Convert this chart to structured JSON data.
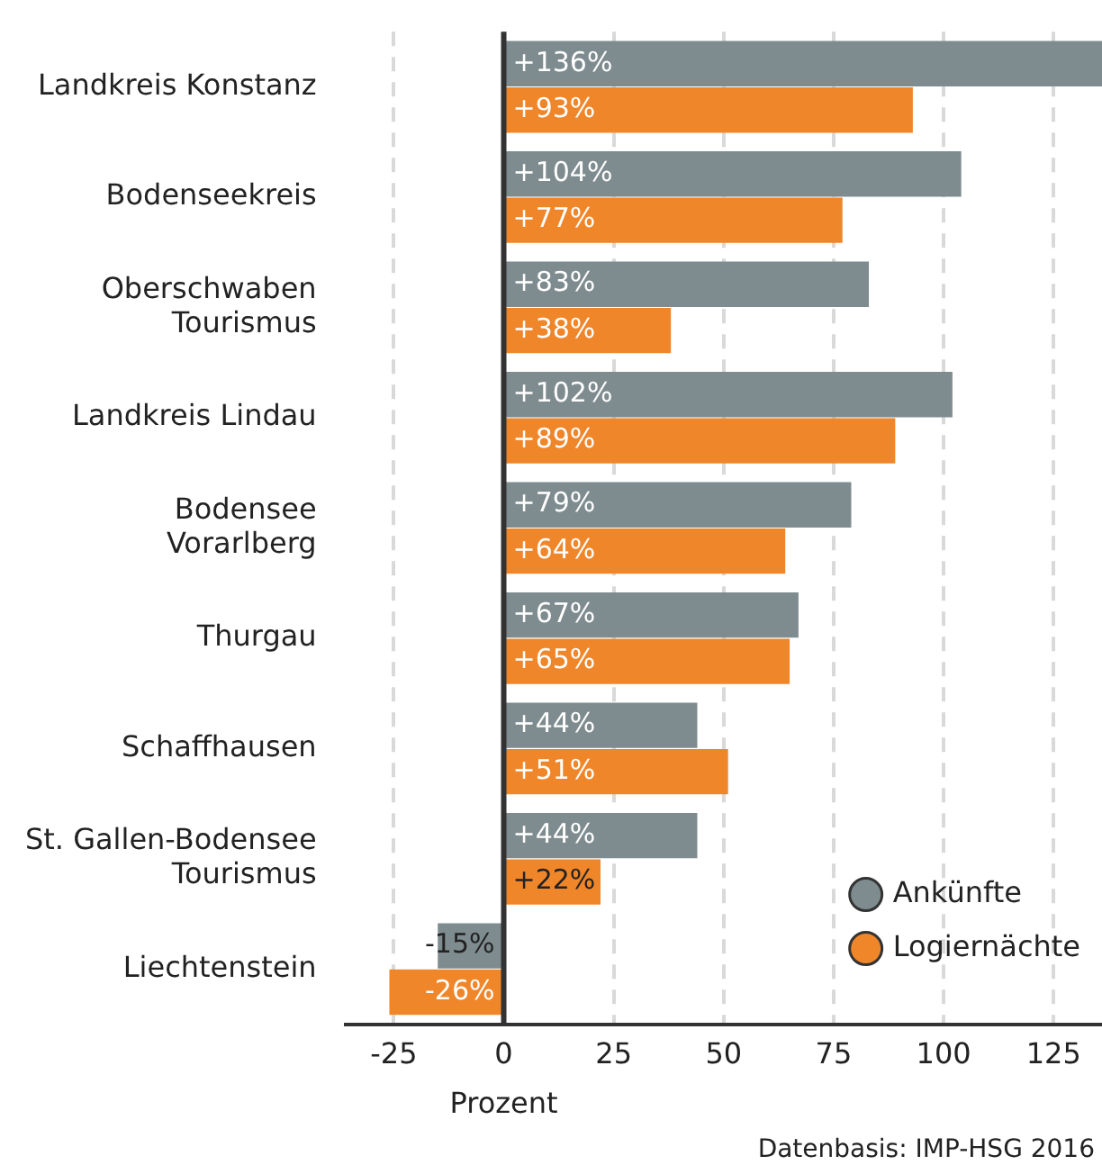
{
  "chart_data": {
    "type": "bar",
    "orientation": "horizontal",
    "xlabel": "Prozent",
    "categories": [
      "Landkreis Konstanz",
      "Bodenseekreis",
      "Oberschwaben\nTourismus",
      "Landkreis Lindau",
      "Bodensee\nVorarlberg",
      "Thurgau",
      "Schaffhausen",
      "St. Gallen-Bodensee\nTourismus",
      "Liechtenstein"
    ],
    "series": [
      {
        "name": "Ankünfte",
        "color": "#7f8c8f",
        "values": [
          136,
          104,
          83,
          102,
          79,
          67,
          44,
          44,
          -15
        ],
        "value_labels": [
          "+136%",
          "+104%",
          "+83%",
          "+102%",
          "+79%",
          "+67%",
          "+44%",
          "+44%",
          "-15%"
        ]
      },
      {
        "name": "Logiernächte",
        "color": "#f0862a",
        "values": [
          93,
          77,
          38,
          89,
          64,
          65,
          51,
          22,
          -26
        ],
        "value_labels": [
          "+93%",
          "+77%",
          "+38%",
          "+89%",
          "+64%",
          "+65%",
          "+51%",
          "+22%",
          "-26%"
        ]
      }
    ],
    "xlim": [
      -36,
      136
    ],
    "xticks": [
      -25,
      0,
      25,
      50,
      75,
      100,
      125
    ],
    "grid": "x",
    "legend": "bottom right",
    "annotations": [
      "Datenbasis: IMP-HSG 2016"
    ]
  }
}
